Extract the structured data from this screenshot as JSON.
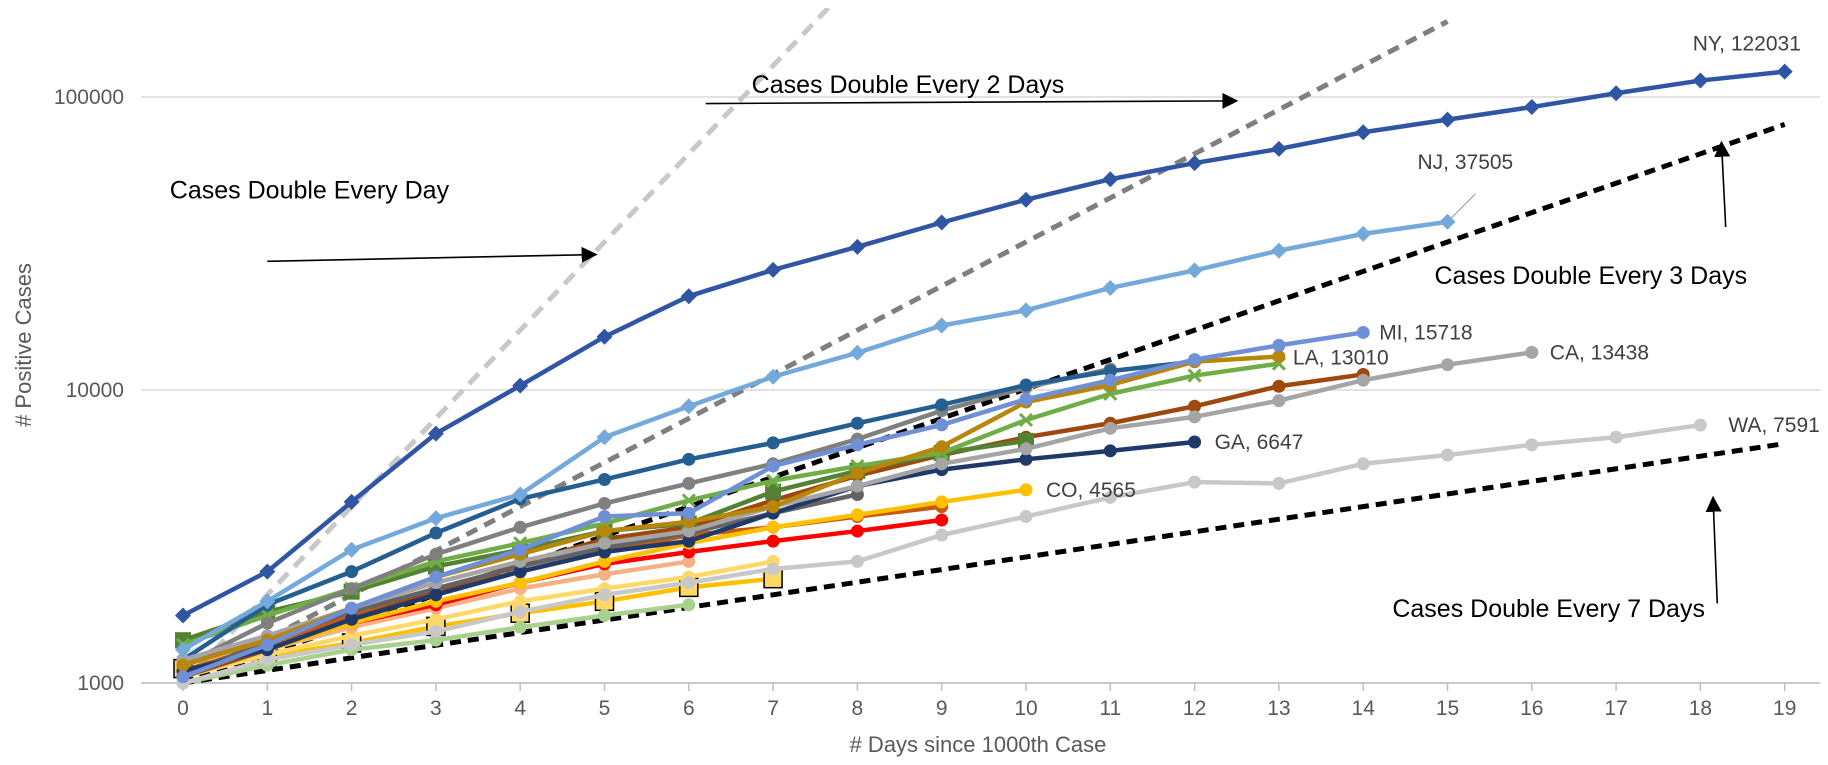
{
  "chart_data": {
    "type": "line",
    "xlabel": "# Days since 1000th Case",
    "ylabel": "# Positive Cases",
    "y_scale": "log",
    "ylim": [
      1000,
      180000
    ],
    "xlim": [
      0,
      19
    ],
    "grid": "horizontal",
    "legend": "none",
    "x_ticks": [
      "0",
      "1",
      "2",
      "3",
      "4",
      "5",
      "6",
      "7",
      "8",
      "9",
      "10",
      "11",
      "12",
      "13",
      "14",
      "15",
      "16",
      "17",
      "18",
      "19"
    ],
    "y_ticks": [
      {
        "value": 1000,
        "label": "1000"
      },
      {
        "value": 10000,
        "label": "10000"
      },
      {
        "value": 100000,
        "label": "100000"
      }
    ],
    "doubling_lines": [
      {
        "days": 1,
        "start": 1000,
        "color": "#c8c8c8",
        "dash": "14,9",
        "x_end": 7.8
      },
      {
        "days": 2,
        "start": 1000,
        "color": "#7f7f7f",
        "dash": "12,8",
        "x_end": 15
      },
      {
        "days": 3,
        "start": 1000,
        "color": "#000000",
        "dash": "11,7",
        "x_end": 19
      },
      {
        "days": 7,
        "start": 1000,
        "color": "#000000",
        "dash": "11,7",
        "x_end": 19
      }
    ],
    "annotations": [
      {
        "text": "Cases Double Every Day",
        "x": 1.5,
        "y": 45000
      },
      {
        "text": "Cases Double Every 2 Days",
        "x": 8.6,
        "y": 103000
      },
      {
        "text": "Cases Double Every 3 Days",
        "x": 16.7,
        "y": 23000
      },
      {
        "text": "Cases Double Every 7 Days",
        "x": 16.2,
        "y": 1680
      }
    ],
    "series": [
      {
        "name": "NY",
        "label": "NY, 122031",
        "color": "#2f55a4",
        "marker": "diamond",
        "values": [
          1700,
          2400,
          4150,
          7100,
          10350,
          15200,
          20900,
          25700,
          30800,
          37300,
          44600,
          52400,
          59500,
          66500,
          75800,
          83700,
          92400,
          103000,
          113800,
          122031
        ]
      },
      {
        "name": "NJ",
        "label": "NJ, 37505",
        "color": "#74a9dc",
        "marker": "diamond",
        "values": [
          1300,
          1900,
          2850,
          3650,
          4400,
          6900,
          8800,
          11100,
          13400,
          16600,
          18700,
          22300,
          25600,
          29900,
          34100,
          37505
        ]
      },
      {
        "name": "MI",
        "label": "MI, 15718",
        "color": "#6f8fd6",
        "marker": "circle",
        "values": [
          1050,
          1350,
          1800,
          2300,
          2850,
          3700,
          3800,
          5500,
          6500,
          7600,
          9300,
          10800,
          12700,
          14200,
          15718
        ]
      },
      {
        "name": "LA",
        "label": "LA, 13010",
        "color": "#b8860b",
        "marker": "circle",
        "values": [
          1150,
          1400,
          1800,
          2300,
          2750,
          3300,
          3550,
          4000,
          5200,
          6400,
          9100,
          10400,
          12500,
          13010
        ]
      },
      {
        "name": "CA",
        "label": "CA, 13438",
        "color": "#a5a5a5",
        "marker": "circle",
        "values": [
          1200,
          1450,
          1800,
          2200,
          2600,
          3000,
          3300,
          4000,
          4700,
          5600,
          6300,
          7400,
          8100,
          9200,
          10800,
          12200,
          13438
        ]
      },
      {
        "name": "GA",
        "label": "GA, 6647",
        "color": "#1f3a6a",
        "marker": "circle",
        "values": [
          1100,
          1300,
          1650,
          2000,
          2400,
          2800,
          3050,
          3800,
          4700,
          5350,
          5800,
          6200,
          6647
        ]
      },
      {
        "name": "CO",
        "label": "CO, 4565",
        "color": "#ffc000",
        "marker": "circle",
        "values": [
          1100,
          1300,
          1600,
          1900,
          2200,
          2600,
          3000,
          3400,
          3750,
          4150,
          4565
        ]
      },
      {
        "name": "WA",
        "label": "WA, 7591",
        "color": "#c8c8c8",
        "marker": "circle",
        "values": [
          1000,
          1200,
          1350,
          1500,
          1750,
          2000,
          2200,
          2450,
          2600,
          3200,
          3700,
          4300,
          4850,
          4800,
          5600,
          6000,
          6500,
          6900,
          7591
        ]
      },
      {
        "name": "",
        "label": "",
        "color": "#255e91",
        "marker": "circle",
        "values": [
          1200,
          1850,
          2400,
          3250,
          4250,
          4950,
          5800,
          6600,
          7700,
          8900,
          10400,
          11600,
          12500
        ]
      },
      {
        "name": "",
        "label": "",
        "color": "#636363",
        "marker": "circle",
        "values": [
          1050,
          1400,
          1750,
          2100,
          2500,
          2900,
          3250,
          3800,
          4400
        ]
      },
      {
        "name": "",
        "label": "",
        "color": "#808080",
        "marker": "circle",
        "values": [
          1150,
          1600,
          2100,
          2750,
          3400,
          4100,
          4800,
          5600,
          6800,
          8500,
          10200,
          11800
        ]
      },
      {
        "name": "",
        "label": "",
        "color": "#70ad47",
        "marker": "x",
        "values": [
          1350,
          1700,
          2100,
          2600,
          3000,
          3500,
          4200,
          4900,
          5500,
          6100,
          7900,
          9700,
          11200,
          12300
        ]
      },
      {
        "name": "",
        "label": "",
        "color": "#548235",
        "marker": "square",
        "values": [
          1400,
          1750,
          2050,
          2500,
          2850,
          3300,
          3500,
          4500,
          5300,
          6100,
          6700
        ]
      },
      {
        "name": "",
        "label": "",
        "color": "#9e480e",
        "marker": "circle",
        "values": [
          1050,
          1300,
          1650,
          2050,
          2550,
          3100,
          3400,
          4200,
          5100,
          6000,
          6900,
          7700,
          8800,
          10300,
          11300
        ]
      },
      {
        "name": "",
        "label": "",
        "color": "#c55a11",
        "marker": "circle",
        "values": [
          1100,
          1350,
          1700,
          2050,
          2400,
          2800,
          3200,
          3400,
          3700,
          4000
        ]
      },
      {
        "name": "",
        "label": "",
        "color": "#ff0000",
        "marker": "circle",
        "values": [
          1200,
          1400,
          1600,
          1850,
          2200,
          2550,
          2800,
          3050,
          3300,
          3600
        ]
      },
      {
        "name": "",
        "label": "",
        "color": "#f4b183",
        "marker": "circle",
        "values": [
          1100,
          1300,
          1550,
          1800,
          2100,
          2350,
          2600
        ]
      },
      {
        "name": "",
        "label": "",
        "color": "#ffd966",
        "marker": "circle",
        "values": [
          1050,
          1250,
          1450,
          1650,
          1900,
          2100,
          2300,
          2600
        ]
      },
      {
        "name": "",
        "label": "",
        "color": "#a9d18e",
        "marker": "circle",
        "values": [
          1000,
          1150,
          1300,
          1400,
          1550,
          1700,
          1850
        ]
      },
      {
        "name": "",
        "label": "",
        "color": "#ffc000",
        "marker": "square-black",
        "values": [
          1120,
          1230,
          1370,
          1560,
          1730,
          1900,
          2120,
          2270
        ]
      }
    ]
  }
}
